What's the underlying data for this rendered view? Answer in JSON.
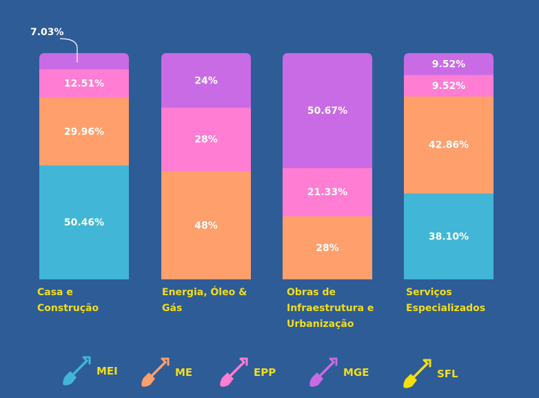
{
  "chart_data": {
    "type": "bar",
    "stacked": true,
    "normalized": true,
    "categories": [
      "Casa e\nConstrução",
      "Energia, Óleo &\nGás",
      "Obras de\nInfraestrutura e\nUrbanização",
      "Serviços\nEspecializados"
    ],
    "series": [
      {
        "name": "MEI",
        "color": "#41B6D6",
        "values": [
          50.46,
          0,
          0,
          38.1
        ],
        "labels": [
          "50.46%",
          "",
          "",
          "38.10%"
        ]
      },
      {
        "name": "ME",
        "color": "#FE9F6C",
        "values": [
          29.96,
          48,
          28,
          42.86
        ],
        "labels": [
          "29.96%",
          "48%",
          "28%",
          "42.86%"
        ]
      },
      {
        "name": "EPP",
        "color": "#FF7DD2",
        "values": [
          12.51,
          28,
          21.33,
          9.52
        ],
        "labels": [
          "12.51%",
          "28%",
          "21.33%",
          "9.52%"
        ]
      },
      {
        "name": "MGE",
        "color": "#C96BE4",
        "values": [
          7.03,
          24,
          50.67,
          9.52
        ],
        "labels": [
          "7.03%",
          "24%",
          "50.67%",
          "9.52%"
        ]
      },
      {
        "name": "SFL",
        "color": "#F5DE0E",
        "values": [
          0,
          0,
          0,
          0
        ],
        "labels": [
          "",
          "",
          "",
          ""
        ]
      }
    ],
    "legend_position": "bottom",
    "grid": false
  },
  "colors": {
    "background": "#2E5C97",
    "category_label": "#F2DE19",
    "segment_label": "#FFFFFF"
  },
  "legend": {
    "icon": "shovel-icon",
    "items": [
      {
        "name": "MEI",
        "color": "#41B6D6"
      },
      {
        "name": "ME",
        "color": "#FE9F6C"
      },
      {
        "name": "EPP",
        "color": "#FF7DD2"
      },
      {
        "name": "MGE",
        "color": "#C96BE4"
      },
      {
        "name": "SFL",
        "color": "#F5DE0E"
      }
    ]
  }
}
